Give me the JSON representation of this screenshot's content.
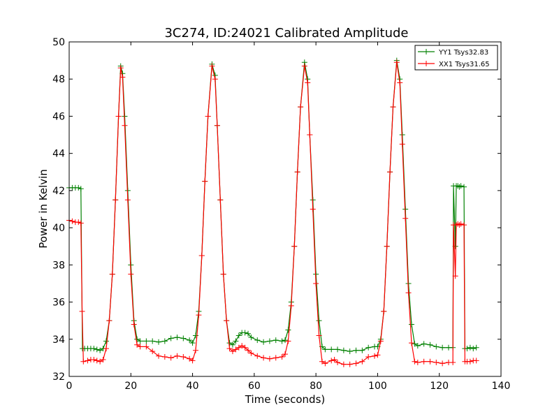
{
  "chart_data": {
    "type": "line",
    "title": "3C274, ID:24021 Calibrated Amplitude",
    "xlabel": "Time (seconds)",
    "ylabel": "Power in Kelvin",
    "xlim": [
      0,
      140
    ],
    "ylim": [
      32,
      50
    ],
    "xticks": [
      0,
      20,
      40,
      60,
      80,
      100,
      120,
      140
    ],
    "yticks": [
      32,
      34,
      36,
      38,
      40,
      42,
      44,
      46,
      48,
      50
    ],
    "grid": false,
    "legend_position": "top-right",
    "marker": "+",
    "series": [
      {
        "name": "YY1 Tsys32.83",
        "color": "#008000",
        "points": [
          [
            0,
            42.15
          ],
          [
            1,
            42.15
          ],
          [
            2,
            42.15
          ],
          [
            3,
            42.15
          ],
          [
            3.8,
            42.1
          ],
          [
            4.3,
            33.5
          ],
          [
            5,
            33.5
          ],
          [
            6,
            33.5
          ],
          [
            7,
            33.5
          ],
          [
            8,
            33.5
          ],
          [
            9,
            33.45
          ],
          [
            10,
            33.4
          ],
          [
            11,
            33.5
          ],
          [
            12,
            33.9
          ],
          [
            13,
            35.0
          ],
          [
            14,
            37.5
          ],
          [
            15,
            41.5
          ],
          [
            16,
            46.0
          ],
          [
            16.7,
            48.7
          ],
          [
            17.3,
            48.3
          ],
          [
            18,
            46.0
          ],
          [
            19,
            42.0
          ],
          [
            20,
            38.0
          ],
          [
            21,
            35.0
          ],
          [
            22,
            34.0
          ],
          [
            23,
            33.9
          ],
          [
            25,
            33.9
          ],
          [
            27,
            33.9
          ],
          [
            29,
            33.85
          ],
          [
            31,
            33.9
          ],
          [
            33,
            34.05
          ],
          [
            35,
            34.1
          ],
          [
            37,
            34.05
          ],
          [
            39,
            33.95
          ],
          [
            40,
            33.8
          ],
          [
            41,
            34.2
          ],
          [
            42,
            35.5
          ],
          [
            43,
            38.5
          ],
          [
            44,
            42.5
          ],
          [
            45,
            46.0
          ],
          [
            46.3,
            48.8
          ],
          [
            47.3,
            48.2
          ],
          [
            48,
            45.5
          ],
          [
            49,
            41.5
          ],
          [
            50,
            37.5
          ],
          [
            51,
            35.0
          ],
          [
            52,
            33.8
          ],
          [
            53,
            33.7
          ],
          [
            54,
            33.9
          ],
          [
            55,
            34.2
          ],
          [
            56,
            34.35
          ],
          [
            57,
            34.35
          ],
          [
            58,
            34.3
          ],
          [
            59,
            34.1
          ],
          [
            61,
            33.95
          ],
          [
            63,
            33.85
          ],
          [
            65,
            33.9
          ],
          [
            67,
            33.95
          ],
          [
            69,
            33.9
          ],
          [
            70,
            33.95
          ],
          [
            71,
            34.5
          ],
          [
            72,
            36.0
          ],
          [
            73,
            39.0
          ],
          [
            74,
            43.0
          ],
          [
            75,
            46.5
          ],
          [
            76.3,
            48.9
          ],
          [
            77.3,
            48.0
          ],
          [
            78,
            45.0
          ],
          [
            79,
            41.5
          ],
          [
            80,
            37.5
          ],
          [
            81,
            35.0
          ],
          [
            82,
            33.6
          ],
          [
            83,
            33.45
          ],
          [
            85,
            33.45
          ],
          [
            87,
            33.45
          ],
          [
            89,
            33.4
          ],
          [
            91,
            33.35
          ],
          [
            93,
            33.4
          ],
          [
            95,
            33.4
          ],
          [
            97,
            33.55
          ],
          [
            99,
            33.6
          ],
          [
            100,
            33.6
          ],
          [
            101,
            34.0
          ],
          [
            102,
            35.5
          ],
          [
            103,
            39.0
          ],
          [
            104,
            43.0
          ],
          [
            105,
            46.5
          ],
          [
            106.2,
            49.0
          ],
          [
            107.2,
            48.0
          ],
          [
            108,
            45.0
          ],
          [
            109,
            41.0
          ],
          [
            110,
            37.0
          ],
          [
            111,
            34.8
          ],
          [
            112,
            33.75
          ],
          [
            113,
            33.65
          ],
          [
            115,
            33.75
          ],
          [
            117,
            33.7
          ],
          [
            119,
            33.6
          ],
          [
            121,
            33.55
          ],
          [
            123,
            33.55
          ],
          [
            124.4,
            33.55
          ],
          [
            124.6,
            42.25
          ],
          [
            125.2,
            39.0
          ],
          [
            125.5,
            42.25
          ],
          [
            126,
            42.25
          ],
          [
            126.5,
            42.2
          ],
          [
            127,
            42.25
          ],
          [
            128,
            42.2
          ],
          [
            128.3,
            33.5
          ],
          [
            129,
            33.5
          ],
          [
            130,
            33.55
          ],
          [
            131,
            33.5
          ],
          [
            132,
            33.55
          ]
        ]
      },
      {
        "name": "XX1 Tsys31.65",
        "color": "#ff0000",
        "points": [
          [
            0,
            40.4
          ],
          [
            1,
            40.35
          ],
          [
            2,
            40.3
          ],
          [
            3,
            40.3
          ],
          [
            3.8,
            40.25
          ],
          [
            4.2,
            35.5
          ],
          [
            4.6,
            32.8
          ],
          [
            6,
            32.85
          ],
          [
            7,
            32.9
          ],
          [
            8,
            32.9
          ],
          [
            9,
            32.85
          ],
          [
            10,
            32.8
          ],
          [
            11,
            32.9
          ],
          [
            12,
            33.5
          ],
          [
            13,
            35.0
          ],
          [
            14,
            37.5
          ],
          [
            15,
            41.5
          ],
          [
            16,
            46.0
          ],
          [
            16.7,
            48.6
          ],
          [
            17.3,
            48.1
          ],
          [
            18,
            45.5
          ],
          [
            19,
            41.5
          ],
          [
            20,
            37.5
          ],
          [
            21,
            34.8
          ],
          [
            22,
            33.7
          ],
          [
            23,
            33.6
          ],
          [
            25,
            33.6
          ],
          [
            27,
            33.35
          ],
          [
            29,
            33.1
          ],
          [
            31,
            33.05
          ],
          [
            33,
            33.0
          ],
          [
            35,
            33.1
          ],
          [
            37,
            33.05
          ],
          [
            39,
            32.95
          ],
          [
            40,
            32.85
          ],
          [
            41,
            33.4
          ],
          [
            42,
            35.3
          ],
          [
            43,
            38.5
          ],
          [
            44,
            42.5
          ],
          [
            45,
            46.0
          ],
          [
            46.3,
            48.7
          ],
          [
            47.3,
            48.0
          ],
          [
            48,
            45.5
          ],
          [
            49,
            41.5
          ],
          [
            50,
            37.5
          ],
          [
            51,
            35.0
          ],
          [
            52,
            33.5
          ],
          [
            53,
            33.35
          ],
          [
            54,
            33.45
          ],
          [
            55,
            33.55
          ],
          [
            56,
            33.65
          ],
          [
            57,
            33.55
          ],
          [
            58,
            33.4
          ],
          [
            59,
            33.25
          ],
          [
            61,
            33.1
          ],
          [
            63,
            33.0
          ],
          [
            65,
            32.95
          ],
          [
            67,
            33.0
          ],
          [
            69,
            33.05
          ],
          [
            70,
            33.2
          ],
          [
            71,
            33.9
          ],
          [
            72,
            35.8
          ],
          [
            73,
            39.0
          ],
          [
            74,
            43.0
          ],
          [
            75,
            46.5
          ],
          [
            76.3,
            48.7
          ],
          [
            77.3,
            47.8
          ],
          [
            78,
            45.0
          ],
          [
            79,
            41.0
          ],
          [
            80,
            37.0
          ],
          [
            81,
            34.2
          ],
          [
            82,
            32.8
          ],
          [
            83,
            32.7
          ],
          [
            85,
            32.85
          ],
          [
            86,
            32.9
          ],
          [
            87,
            32.75
          ],
          [
            89,
            32.65
          ],
          [
            91,
            32.65
          ],
          [
            93,
            32.7
          ],
          [
            95,
            32.8
          ],
          [
            97,
            33.05
          ],
          [
            99,
            33.1
          ],
          [
            100,
            33.15
          ],
          [
            101,
            33.9
          ],
          [
            102,
            35.5
          ],
          [
            103,
            39.0
          ],
          [
            104,
            43.0
          ],
          [
            105,
            46.5
          ],
          [
            106.2,
            48.9
          ],
          [
            107.2,
            47.8
          ],
          [
            108,
            44.5
          ],
          [
            109,
            40.5
          ],
          [
            110,
            36.5
          ],
          [
            111,
            33.8
          ],
          [
            112,
            32.8
          ],
          [
            113,
            32.75
          ],
          [
            115,
            32.8
          ],
          [
            117,
            32.8
          ],
          [
            119,
            32.75
          ],
          [
            121,
            32.7
          ],
          [
            123,
            32.75
          ],
          [
            124.4,
            32.75
          ],
          [
            124.6,
            40.15
          ],
          [
            125.2,
            37.4
          ],
          [
            125.5,
            40.15
          ],
          [
            126,
            40.2
          ],
          [
            126.5,
            40.15
          ],
          [
            127,
            40.2
          ],
          [
            128,
            40.15
          ],
          [
            128.3,
            32.8
          ],
          [
            129,
            32.8
          ],
          [
            130,
            32.8
          ],
          [
            131,
            32.85
          ],
          [
            132,
            32.85
          ]
        ]
      }
    ]
  }
}
